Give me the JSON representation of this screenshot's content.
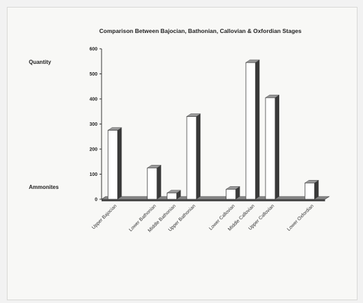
{
  "chart_data": {
    "type": "bar",
    "title": "Comparison Between Bajocian, Bathonian, Callovian & Oxfordian Stages",
    "side_labels": {
      "top": "Quantity",
      "bottom": "Ammonites"
    },
    "categories": [
      "Upper Bajocian",
      "",
      "Lower Bathonian",
      "Middle Bathonian",
      "Upper Bathonian",
      "",
      "Lower Callovian",
      "Middle Callovian",
      "Upper Callovian",
      "",
      "Lower Oxfordian"
    ],
    "values": [
      275,
      0,
      125,
      25,
      330,
      0,
      40,
      545,
      405,
      0,
      65
    ],
    "ylim": [
      0,
      600
    ],
    "yticks": [
      0,
      100,
      200,
      300,
      400,
      500,
      600
    ],
    "grid": false,
    "legend": "none",
    "colors": {
      "bar_face": "#ffffff",
      "bar_side": "#3a3a3a",
      "bar_top": "#9a9a9a",
      "floor": "#4a4a4a",
      "text": "#222222"
    }
  }
}
